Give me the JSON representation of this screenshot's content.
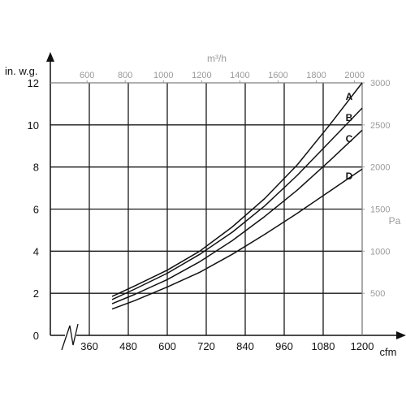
{
  "chart_data": {
    "type": "line",
    "grid": true,
    "left_axis": {
      "unit": "in. w.g.",
      "ticks": [
        "0",
        "2",
        "4",
        "6",
        "8",
        "10",
        "12"
      ],
      "ylim": [
        0,
        12
      ]
    },
    "bottom_axis": {
      "unit": "cfm",
      "ticks": [
        "360",
        "480",
        "600",
        "720",
        "840",
        "960",
        "1080",
        "1200"
      ],
      "xlim": [
        240,
        1200
      ],
      "axis_break": true
    },
    "top_axis": {
      "unit": "m³/h",
      "ticks": [
        "600",
        "800",
        "1000",
        "1200",
        "1400",
        "1600",
        "1800",
        "2000"
      ],
      "tick_values": [
        600,
        800,
        1000,
        1200,
        1400,
        1600,
        1800,
        2000
      ]
    },
    "right_axis": {
      "unit": "Pa",
      "ticks": [
        "500",
        "1000",
        "1500",
        "2000",
        "2500",
        "3000"
      ],
      "tick_values": [
        500,
        1000,
        1500,
        2000,
        2500,
        3000
      ]
    },
    "series": [
      {
        "name": "A",
        "x": [
          430,
          500,
          600,
          700,
          800,
          900,
          1000,
          1100,
          1200
        ],
        "y": [
          1.85,
          2.35,
          3.1,
          4.0,
          5.15,
          6.5,
          8.1,
          10.0,
          12.0
        ]
      },
      {
        "name": "B",
        "x": [
          430,
          500,
          600,
          700,
          800,
          900,
          1000,
          1100,
          1200
        ],
        "y": [
          1.7,
          2.2,
          2.95,
          3.85,
          4.9,
          6.15,
          7.6,
          9.2,
          10.8
        ]
      },
      {
        "name": "C",
        "x": [
          430,
          500,
          600,
          700,
          800,
          900,
          1000,
          1100,
          1200
        ],
        "y": [
          1.5,
          1.95,
          2.65,
          3.5,
          4.5,
          5.65,
          6.9,
          8.3,
          9.75
        ]
      },
      {
        "name": "D",
        "x": [
          430,
          500,
          600,
          700,
          800,
          900,
          1000,
          1100,
          1200
        ],
        "y": [
          1.25,
          1.65,
          2.3,
          3.0,
          3.85,
          4.8,
          5.8,
          6.85,
          7.9
        ]
      }
    ]
  }
}
